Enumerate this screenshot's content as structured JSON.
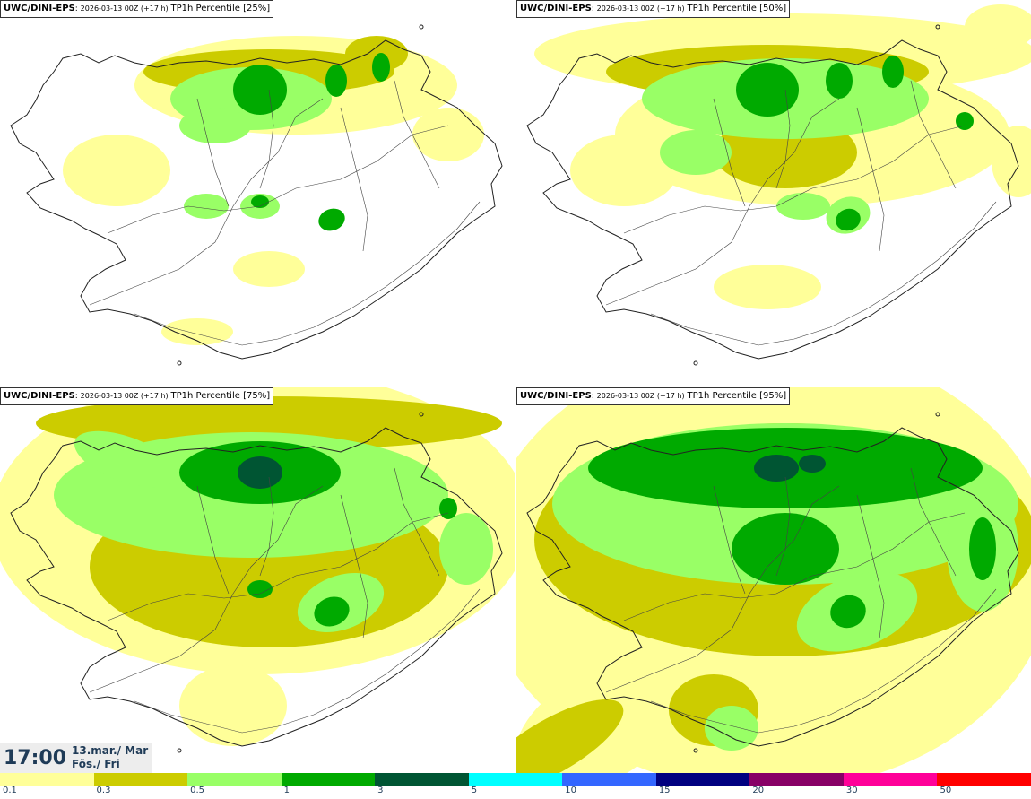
{
  "panels": [
    {
      "model": "UWC/DINI-EPS",
      "run": "2026-03-13 00Z (+17 h)",
      "desc": "TP1h Percentile [25%]",
      "percentile": 25
    },
    {
      "model": "UWC/DINI-EPS",
      "run": "2026-03-13 00Z (+17 h)",
      "desc": "TP1h Percentile [50%]",
      "percentile": 50
    },
    {
      "model": "UWC/DINI-EPS",
      "run": "2026-03-13 00Z (+17 h)",
      "desc": "TP1h Percentile [75%]",
      "percentile": 75
    },
    {
      "model": "UWC/DINI-EPS",
      "run": "2026-03-13 00Z (+17 h)",
      "desc": "TP1h Percentile [95%]",
      "percentile": 95
    }
  ],
  "valid_time": {
    "time": "17:00",
    "date_line1": "13.mar./ Mar",
    "date_line2": "Fös./ Fri"
  },
  "legend": {
    "ticks": [
      "0.1",
      "0.3",
      "0.5",
      "1",
      "3",
      "5",
      "10",
      "15",
      "20",
      "30",
      "50"
    ],
    "colors": [
      "#ffff99",
      "#cccc00",
      "#99ff66",
      "#00aa00",
      "#005533",
      "#00ffff",
      "#3366ff",
      "#000080",
      "#880066",
      "#ff0099",
      "#ff0000"
    ]
  }
}
